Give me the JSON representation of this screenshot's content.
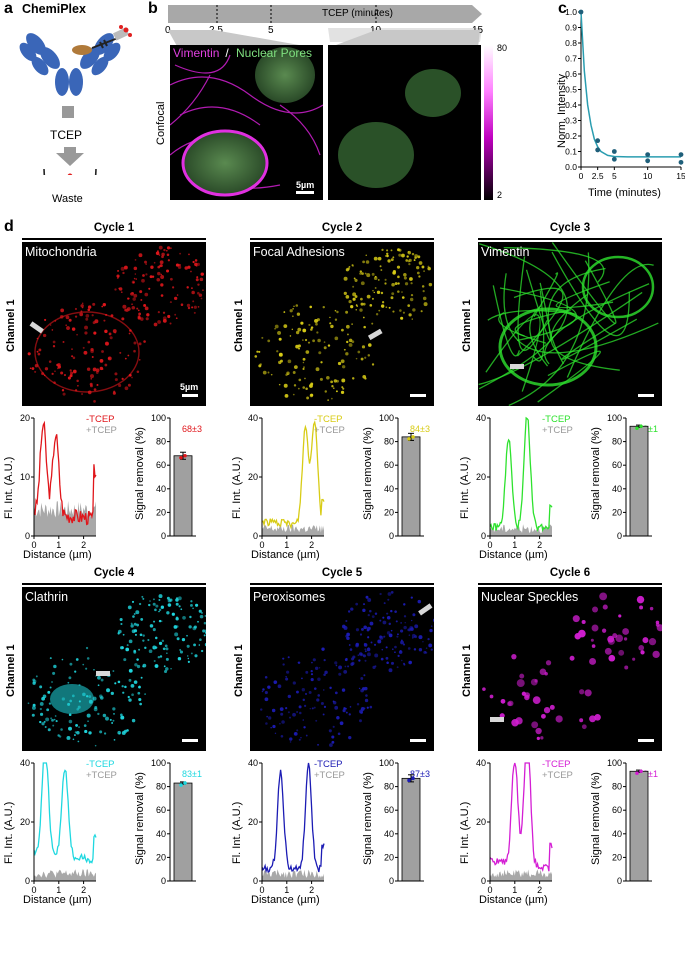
{
  "panel_a": {
    "label": "a",
    "title": "ChemiPlex",
    "step": "TCEP",
    "waste": "Waste"
  },
  "panel_b": {
    "label": "b",
    "axis_title": "TCEP (minutes)",
    "ticks": [
      "0",
      "2.5",
      "5",
      "10",
      "15"
    ],
    "tick_values": [
      0,
      2.5,
      5,
      10,
      15
    ],
    "image_label": "Confocal",
    "legend_vimentin": "Vimentin",
    "legend_sep": " / ",
    "legend_pores": "Nuclear Pores",
    "scalebar": "5µm",
    "cbar_max": "80",
    "cbar_min": "2"
  },
  "panel_c": {
    "label": "c",
    "xlabel": "Time (minutes)",
    "ylabel": "Norm. Intensity"
  },
  "panel_d": {
    "label": "d",
    "channel": "Channel 1",
    "scalebar": "5µm",
    "legend_minus": "-TCEP",
    "legend_plus": "+TCEP",
    "xlabel": "Distance (µm)",
    "ylabel": "Fl. Int. (A.U.)",
    "bar_ylabel": "Signal removal (%)",
    "bar_ticks": [
      "0",
      "20",
      "40",
      "60",
      "80",
      "100"
    ],
    "cycles": [
      {
        "title": "Cycle 1",
        "name": "Mitochondria",
        "label": "68±3",
        "value": 68,
        "color": "#e0161b",
        "ymax": 20,
        "yticks": [
          "0",
          "10",
          "20"
        ]
      },
      {
        "title": "Cycle 2",
        "name": "Focal Adhesions",
        "label": "84±3",
        "value": 84,
        "color": "#d8cc16",
        "ymax": 40,
        "yticks": [
          "0",
          "20",
          "40"
        ]
      },
      {
        "title": "Cycle 3",
        "name": "Vimentin",
        "label": "93±1",
        "value": 93,
        "color": "#2ee22e",
        "ymax": 40,
        "yticks": [
          "0",
          "20",
          "40"
        ]
      },
      {
        "title": "Cycle 4",
        "name": "Clathrin",
        "label": "83±1",
        "value": 83,
        "color": "#1fd8e0",
        "ymax": 40,
        "yticks": [
          "0",
          "20",
          "40"
        ]
      },
      {
        "title": "Cycle 5",
        "name": "Peroxisomes",
        "label": "87±3",
        "value": 87,
        "color": "#1c1cb4",
        "ymax": 40,
        "yticks": [
          "0",
          "20",
          "40"
        ]
      },
      {
        "title": "Cycle 6",
        "name": "Nuclear Speckles",
        "label": "93±1",
        "value": 93,
        "color": "#d41ed4",
        "ymax": 40,
        "yticks": [
          "0",
          "20",
          "40"
        ]
      }
    ]
  },
  "chart_data": [
    {
      "type": "scatter",
      "panel": "c",
      "xlabel": "Time (minutes)",
      "ylabel": "Norm. Intensity",
      "xticks": [
        "0",
        "2.5",
        "5",
        "10",
        "15"
      ],
      "yticks": [
        "0.0",
        "0.1",
        "0.2",
        "0.3",
        "0.4",
        "0.5",
        "0.6",
        "0.7",
        "0.8",
        "0.9",
        "1.0"
      ],
      "xlim": [
        0,
        15
      ],
      "ylim": [
        0,
        1.0
      ],
      "points": {
        "x": [
          0,
          2.5,
          2.5,
          5,
          5,
          10,
          10,
          15,
          15
        ],
        "y": [
          1.0,
          0.17,
          0.11,
          0.1,
          0.05,
          0.08,
          0.04,
          0.08,
          0.03
        ]
      },
      "fit": {
        "x": [
          0,
          0.5,
          1,
          1.5,
          2,
          2.5,
          3,
          4,
          5,
          7,
          10,
          12.5,
          15
        ],
        "y": [
          1.0,
          0.62,
          0.4,
          0.27,
          0.18,
          0.13,
          0.1,
          0.075,
          0.068,
          0.065,
          0.065,
          0.065,
          0.065
        ]
      },
      "point_color": "#1f5f7a",
      "fit_color": "#2a9db0"
    },
    {
      "type": "bar",
      "panel": "d",
      "ylabel": "Signal removal (%)",
      "ylim": [
        0,
        100
      ],
      "categories": [
        "Cycle 1",
        "Cycle 2",
        "Cycle 3",
        "Cycle 4",
        "Cycle 5",
        "Cycle 6"
      ],
      "values": [
        68,
        84,
        93,
        83,
        87,
        93
      ],
      "errors": [
        3,
        3,
        1,
        1,
        3,
        1
      ]
    }
  ]
}
